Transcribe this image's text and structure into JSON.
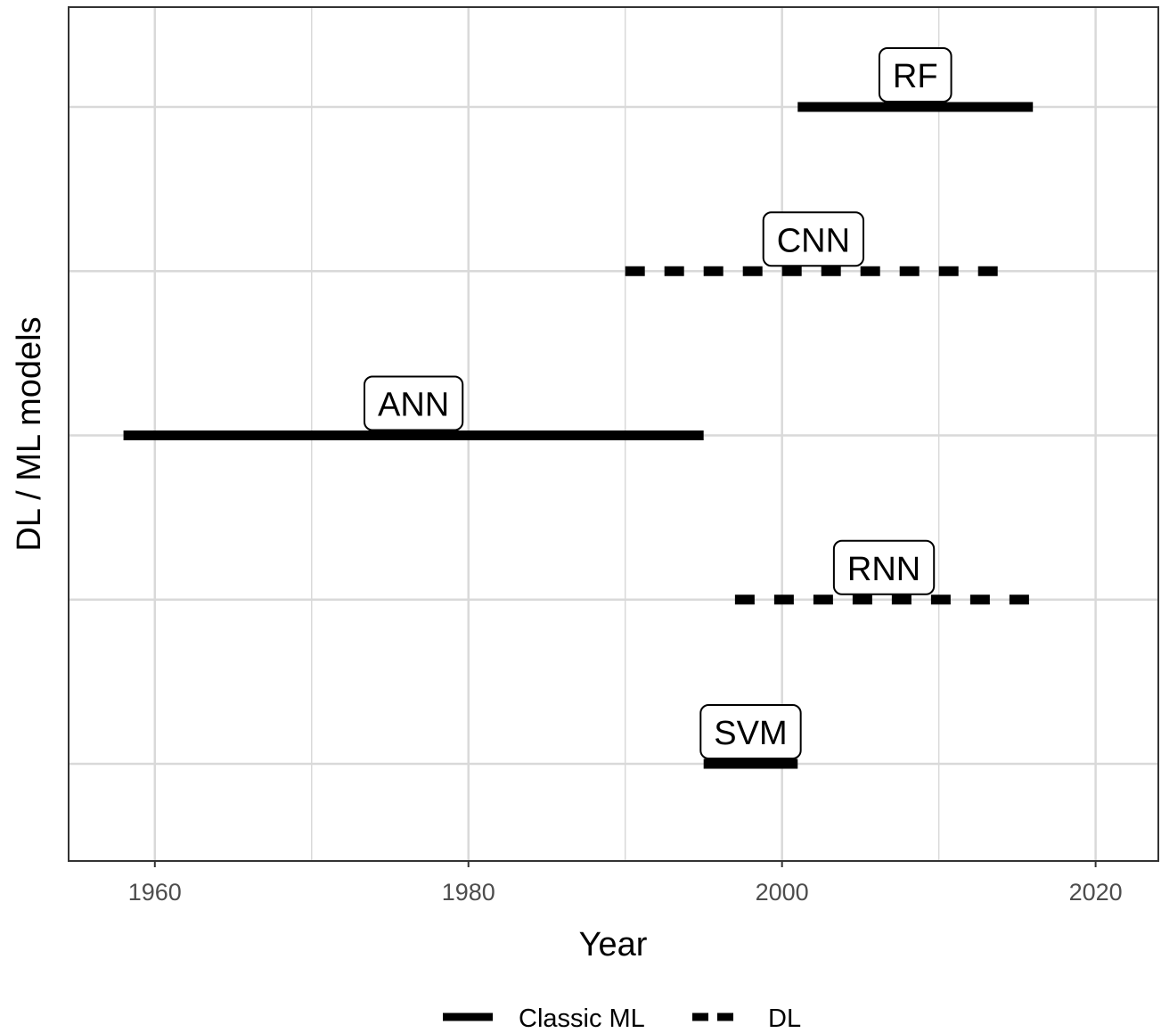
{
  "chart_data": {
    "type": "timeline",
    "xlabel": "Year",
    "ylabel": "DL / ML models",
    "xlim": [
      1954.5,
      2024
    ],
    "xticks": [
      1960,
      1980,
      2000,
      2020
    ],
    "grid": true,
    "legend_position": "bottom",
    "legend": [
      {
        "label": "Classic ML",
        "style": "solid"
      },
      {
        "label": "DL",
        "style": "dashed"
      }
    ],
    "series": [
      {
        "name": "RF",
        "category": "Classic ML",
        "start": 2001,
        "end": 2016
      },
      {
        "name": "CNN",
        "category": "DL",
        "start": 1990,
        "end": 2014
      },
      {
        "name": "ANN",
        "category": "Classic ML",
        "start": 1958,
        "end": 1995
      },
      {
        "name": "RNN",
        "category": "DL",
        "start": 1997,
        "end": 2016
      },
      {
        "name": "SVM",
        "category": "Classic ML",
        "start": 1995,
        "end": 2001
      }
    ],
    "colors": {
      "line": "#000000",
      "grid": "#d9d9d9",
      "panel_border": "#333333",
      "tick_text": "#4d4d4d"
    }
  }
}
